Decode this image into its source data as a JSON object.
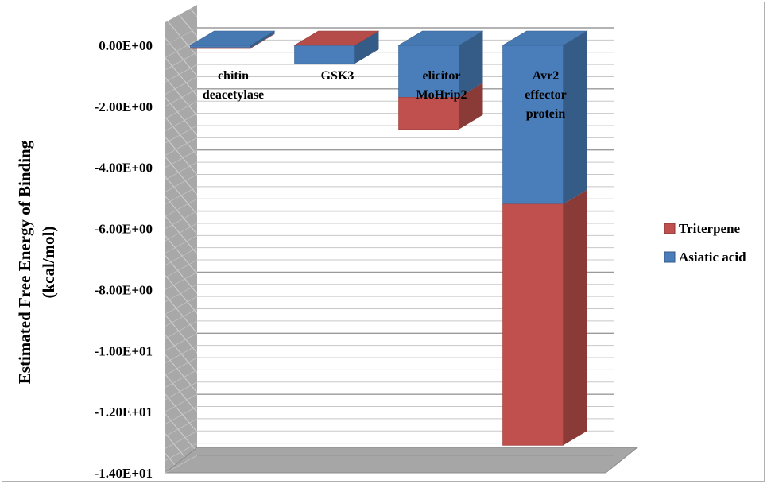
{
  "chart_data": {
    "type": "bar",
    "stacked": true,
    "three_d": true,
    "title": "",
    "xlabel": "",
    "ylabel_lines": [
      "Estimated Free Energy of Binding",
      "(kcal/mol)"
    ],
    "ylim": [
      -14,
      0
    ],
    "yticks": [
      0,
      -2,
      -4,
      -6,
      -8,
      -10,
      -12,
      -14
    ],
    "ytick_labels": [
      "0.00E+00",
      "-2.00E+00",
      "-4.00E+00",
      "-6.00E+00",
      "-8.00E+00",
      "-1.00E+01",
      "-1.20E+01",
      "-1.40E+01"
    ],
    "grid": true,
    "legend_position": "right",
    "categories": [
      "chitin deacetylase",
      "GSK3",
      "elicitor MoHrip2",
      "Avr2 effector protein"
    ],
    "category_label_lines": [
      [
        "chitin",
        "deacetylase"
      ],
      [
        "GSK3"
      ],
      [
        "elicitor",
        "MoHrip2"
      ],
      [
        "Avr2",
        "effector",
        "protein"
      ]
    ],
    "series": [
      {
        "name": "Asiatic acid",
        "color": "#4a7ebb",
        "values": [
          -0.08,
          -0.6,
          -1.7,
          -5.2
        ]
      },
      {
        "name": "Triterpene",
        "color": "#c0504d",
        "values": [
          -0.02,
          0.0,
          -1.05,
          -7.9
        ]
      }
    ],
    "legend_order": [
      "Triterpene",
      "Asiatic acid"
    ]
  }
}
